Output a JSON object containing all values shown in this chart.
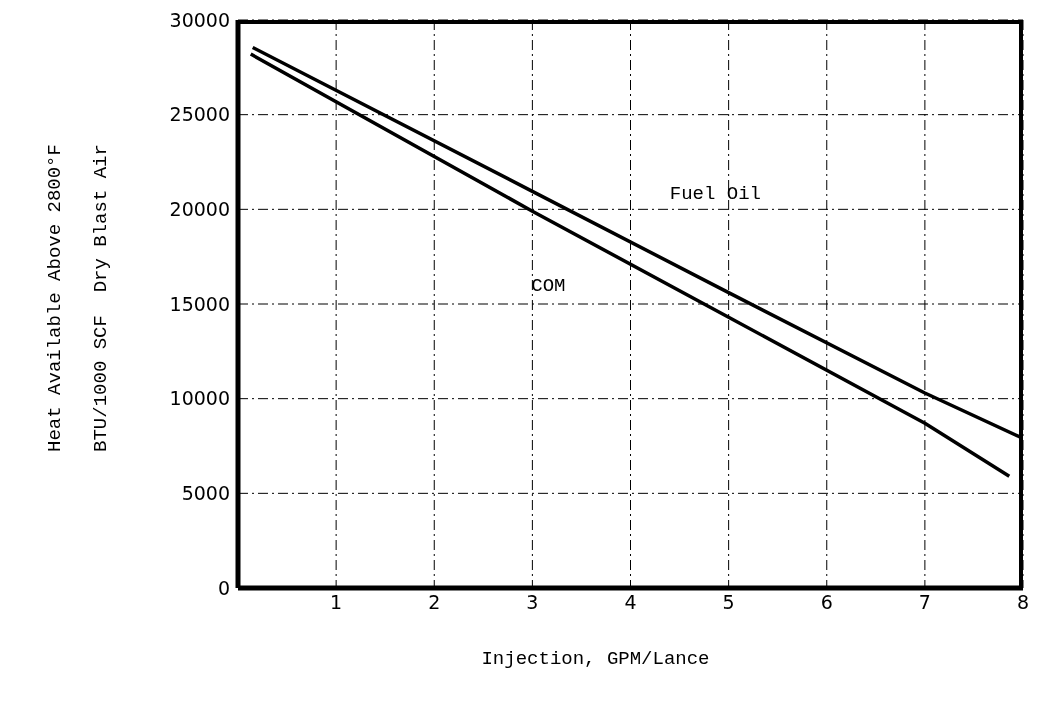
{
  "chart_data": {
    "type": "line",
    "xlabel": "Injection, GPM/Lance",
    "ylabel": "Heat Available Above 2800°F\nBTU/1000 SCF  Dry Blast Air",
    "series": [
      {
        "name": "Fuel Oil",
        "color": "#000000",
        "x": [
          0.15,
          3,
          5,
          7,
          8
        ],
        "values": [
          28550,
          20950,
          15600,
          10300,
          7900
        ]
      },
      {
        "name": "COM",
        "color": "#000000",
        "x": [
          0.13,
          3,
          5,
          7,
          7.86
        ],
        "values": [
          28200,
          19900,
          14300,
          8700,
          5900
        ]
      }
    ],
    "xlim": [
      0,
      8
    ],
    "xticks": [
      1,
      2,
      3,
      4,
      5,
      6,
      7,
      8
    ],
    "ylim": [
      0,
      30000
    ],
    "yticks": [
      0,
      5000,
      10000,
      15000,
      20000,
      25000,
      30000
    ],
    "grid": true,
    "legend": false,
    "marker": "none",
    "line_style": "solid"
  }
}
